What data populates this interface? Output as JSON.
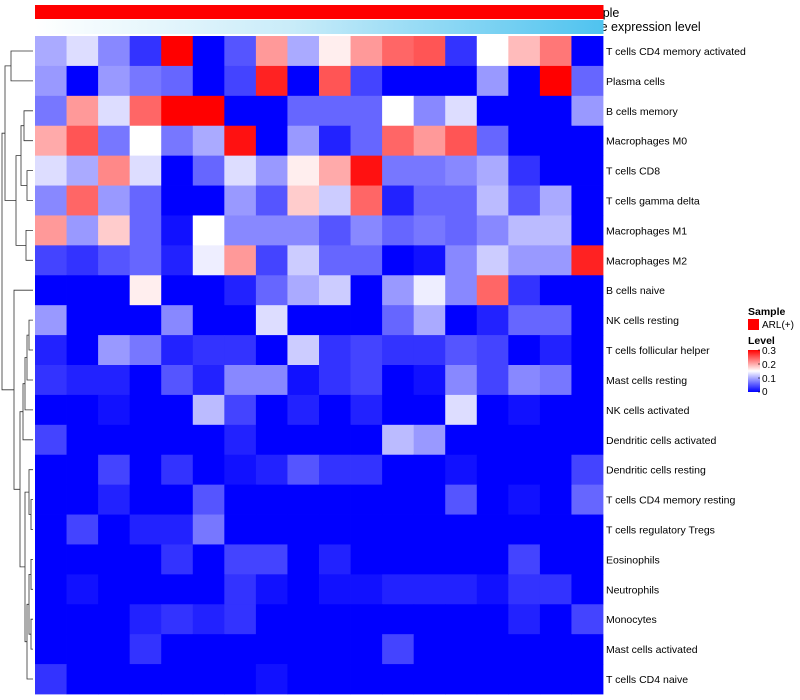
{
  "chart_data": {
    "type": "heatmap",
    "title": "",
    "annotation_tracks": [
      {
        "label": "Sample",
        "color": "#ff0000"
      },
      {
        "label": "Gene expression level",
        "gradient": [
          "#ffffff",
          "#5bc8ef"
        ]
      }
    ],
    "rows": [
      "T cells CD4 memory activated",
      "Plasma cells",
      "B cells memory",
      "Macrophages M0",
      "T cells CD8",
      "T cells gamma delta",
      "Macrophages M1",
      "Macrophages M2",
      "B cells naive",
      "NK cells resting",
      "T cells follicular helper",
      "Mast cells resting",
      "NK cells activated",
      "Dendritic cells activated",
      "Dendritic cells resting",
      "T cells CD4 memory resting",
      "T cells regulatory  Tregs",
      "Eosinophils",
      "Neutrophils",
      "Monocytes",
      "Mast cells activated",
      "T cells CD4 naive"
    ],
    "n_columns": 18,
    "values": [
      [
        0.1,
        0.13,
        0.08,
        0.03,
        0.3,
        0.0,
        0.05,
        0.21,
        0.1,
        0.16,
        0.21,
        0.24,
        0.25,
        0.03,
        0.15,
        0.19,
        0.23,
        0.0
      ],
      [
        0.09,
        0.0,
        0.09,
        0.07,
        0.06,
        0.0,
        0.04,
        0.28,
        0.0,
        0.25,
        0.04,
        0.0,
        0.0,
        0.0,
        0.09,
        0.0,
        0.3,
        0.06
      ],
      [
        0.07,
        0.21,
        0.13,
        0.24,
        0.3,
        0.3,
        0.0,
        0.0,
        0.06,
        0.06,
        0.06,
        0.15,
        0.08,
        0.13,
        0.0,
        0.0,
        0.0,
        0.09
      ],
      [
        0.2,
        0.25,
        0.07,
        0.15,
        0.07,
        0.1,
        0.29,
        0.0,
        0.09,
        0.02,
        0.06,
        0.24,
        0.21,
        0.25,
        0.06,
        0.0,
        0.0,
        0.0
      ],
      [
        0.13,
        0.1,
        0.22,
        0.13,
        0.0,
        0.06,
        0.13,
        0.09,
        0.16,
        0.2,
        0.29,
        0.07,
        0.07,
        0.08,
        0.1,
        0.03,
        0.0,
        0.0
      ],
      [
        0.08,
        0.24,
        0.09,
        0.06,
        0.0,
        0.0,
        0.09,
        0.05,
        0.18,
        0.12,
        0.24,
        0.02,
        0.06,
        0.06,
        0.11,
        0.05,
        0.1,
        0.0
      ],
      [
        0.21,
        0.09,
        0.18,
        0.06,
        0.01,
        0.15,
        0.08,
        0.08,
        0.08,
        0.05,
        0.08,
        0.06,
        0.07,
        0.06,
        0.08,
        0.11,
        0.11,
        0.0
      ],
      [
        0.04,
        0.03,
        0.05,
        0.06,
        0.02,
        0.14,
        0.21,
        0.04,
        0.12,
        0.06,
        0.06,
        0.0,
        0.01,
        0.08,
        0.12,
        0.09,
        0.09,
        0.28
      ],
      [
        0.0,
        0.0,
        0.0,
        0.16,
        0.0,
        0.0,
        0.02,
        0.06,
        0.1,
        0.12,
        0.0,
        0.09,
        0.14,
        0.08,
        0.24,
        0.03,
        0.0,
        0.0
      ],
      [
        0.09,
        0.0,
        0.0,
        0.0,
        0.08,
        0.0,
        0.0,
        0.13,
        0.0,
        0.0,
        0.0,
        0.06,
        0.1,
        0.0,
        0.02,
        0.06,
        0.06,
        0.0
      ],
      [
        0.02,
        0.0,
        0.09,
        0.07,
        0.02,
        0.03,
        0.03,
        0.0,
        0.12,
        0.03,
        0.04,
        0.03,
        0.03,
        0.05,
        0.04,
        0.0,
        0.02,
        0.0
      ],
      [
        0.03,
        0.02,
        0.02,
        0.0,
        0.05,
        0.02,
        0.08,
        0.08,
        0.01,
        0.03,
        0.04,
        0.0,
        0.01,
        0.08,
        0.04,
        0.08,
        0.07,
        0.0
      ],
      [
        0.0,
        0.0,
        0.01,
        0.0,
        0.0,
        0.11,
        0.04,
        0.0,
        0.02,
        0.0,
        0.02,
        0.0,
        0.0,
        0.13,
        0.0,
        0.01,
        0.0,
        0.0
      ],
      [
        0.04,
        0.0,
        0.0,
        0.0,
        0.0,
        0.0,
        0.02,
        0.0,
        0.0,
        0.0,
        0.0,
        0.11,
        0.09,
        0.0,
        0.0,
        0.0,
        0.0,
        0.0
      ],
      [
        0.0,
        0.0,
        0.04,
        0.0,
        0.03,
        0.0,
        0.01,
        0.02,
        0.05,
        0.03,
        0.03,
        0.0,
        0.0,
        0.01,
        0.0,
        0.0,
        0.0,
        0.04
      ],
      [
        0.0,
        0.0,
        0.02,
        0.0,
        0.0,
        0.05,
        0.0,
        0.0,
        0.0,
        0.0,
        0.0,
        0.0,
        0.0,
        0.05,
        0.0,
        0.01,
        0.0,
        0.06
      ],
      [
        0.0,
        0.04,
        0.0,
        0.02,
        0.02,
        0.07,
        0.0,
        0.0,
        0.0,
        0.0,
        0.0,
        0.0,
        0.0,
        0.0,
        0.0,
        0.0,
        0.0,
        0.0
      ],
      [
        0.0,
        0.0,
        0.0,
        0.0,
        0.03,
        0.0,
        0.04,
        0.04,
        0.0,
        0.02,
        0.0,
        0.0,
        0.0,
        0.0,
        0.0,
        0.04,
        0.0,
        0.0
      ],
      [
        0.0,
        0.01,
        0.0,
        0.0,
        0.0,
        0.0,
        0.03,
        0.01,
        0.0,
        0.01,
        0.01,
        0.02,
        0.02,
        0.02,
        0.01,
        0.03,
        0.03,
        0.0
      ],
      [
        0.0,
        0.0,
        0.0,
        0.02,
        0.03,
        0.02,
        0.03,
        0.0,
        0.0,
        0.0,
        0.0,
        0.0,
        0.0,
        0.0,
        0.0,
        0.02,
        0.0,
        0.04
      ],
      [
        0.0,
        0.0,
        0.0,
        0.03,
        0.0,
        0.0,
        0.0,
        0.0,
        0.0,
        0.0,
        0.0,
        0.04,
        0.0,
        0.0,
        0.0,
        0.0,
        0.0,
        0.0
      ],
      [
        0.03,
        0.0,
        0.0,
        0.0,
        0.0,
        0.0,
        0.0,
        0.01,
        0.0,
        0.0,
        0.0,
        0.0,
        0.0,
        0.0,
        0.0,
        0.0,
        0.0,
        0.0
      ]
    ],
    "color_scale": {
      "min": 0,
      "max": 0.3,
      "low": "#0000ff",
      "mid": "#ffffff",
      "midpoint": 0.15,
      "high": "#ff0000"
    },
    "legend": {
      "placement": "right",
      "sample_title": "Sample",
      "sample_entry": "ARL(+)",
      "level_title": "Level",
      "ticks": [
        "0.3",
        "0.2",
        "0.1",
        "0"
      ]
    }
  }
}
